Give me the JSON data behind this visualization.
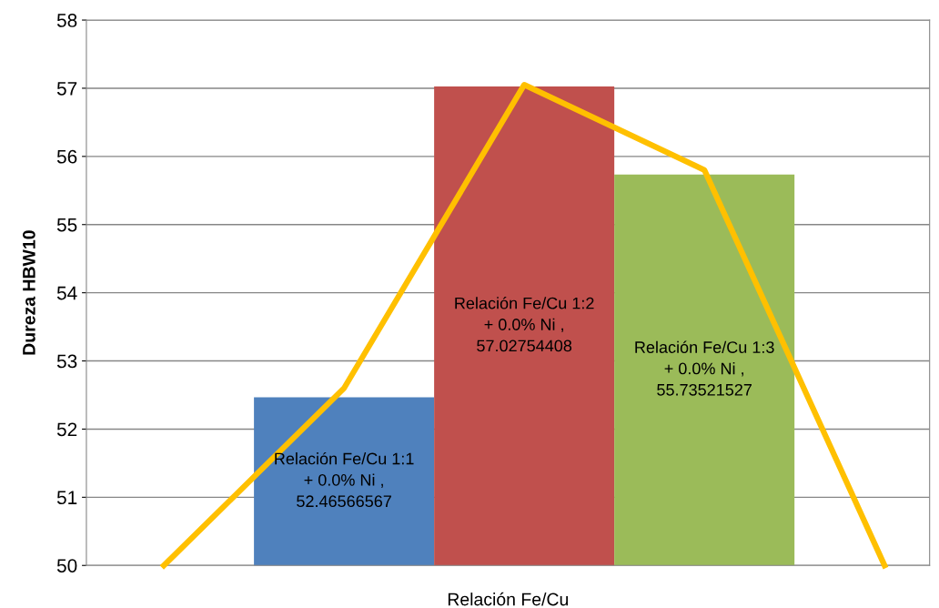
{
  "chart_data": {
    "type": "bar",
    "xlabel": "Relación Fe/Cu",
    "ylabel": "Dureza HBW10",
    "categories": [
      null,
      null,
      null,
      null,
      null
    ],
    "series": [
      {
        "name": "Relación Fe/Cu 1:1 + 0.0% Ni ,",
        "color": "#4f81bd",
        "values": [
          null,
          52.46566567,
          null,
          null,
          null
        ],
        "value_labels": [
          null,
          "52.46566567",
          null,
          null,
          null
        ]
      },
      {
        "name": "Relación Fe/Cu 1:2 + 0.0% Ni ,",
        "color": "#c0504d",
        "values": [
          null,
          null,
          57.02754408,
          null,
          null
        ],
        "value_labels": [
          null,
          null,
          "57.02754408",
          null,
          null
        ]
      },
      {
        "name": "Relación Fe/Cu 1:3 + 0.0% Ni ,",
        "color": "#9bbb59",
        "values": [
          null,
          null,
          null,
          55.73521527,
          null
        ],
        "value_labels": [
          null,
          null,
          null,
          "55.73521527",
          null
        ]
      },
      {
        "type": "line",
        "color": "#ffc000",
        "values": [
          50,
          52.6,
          57.05,
          55.8,
          50
        ]
      }
    ],
    "ylim": [
      50,
      58
    ],
    "yticks": [
      50,
      51,
      52,
      53,
      54,
      55,
      56,
      57,
      58
    ],
    "grid": "y",
    "legend": false
  }
}
